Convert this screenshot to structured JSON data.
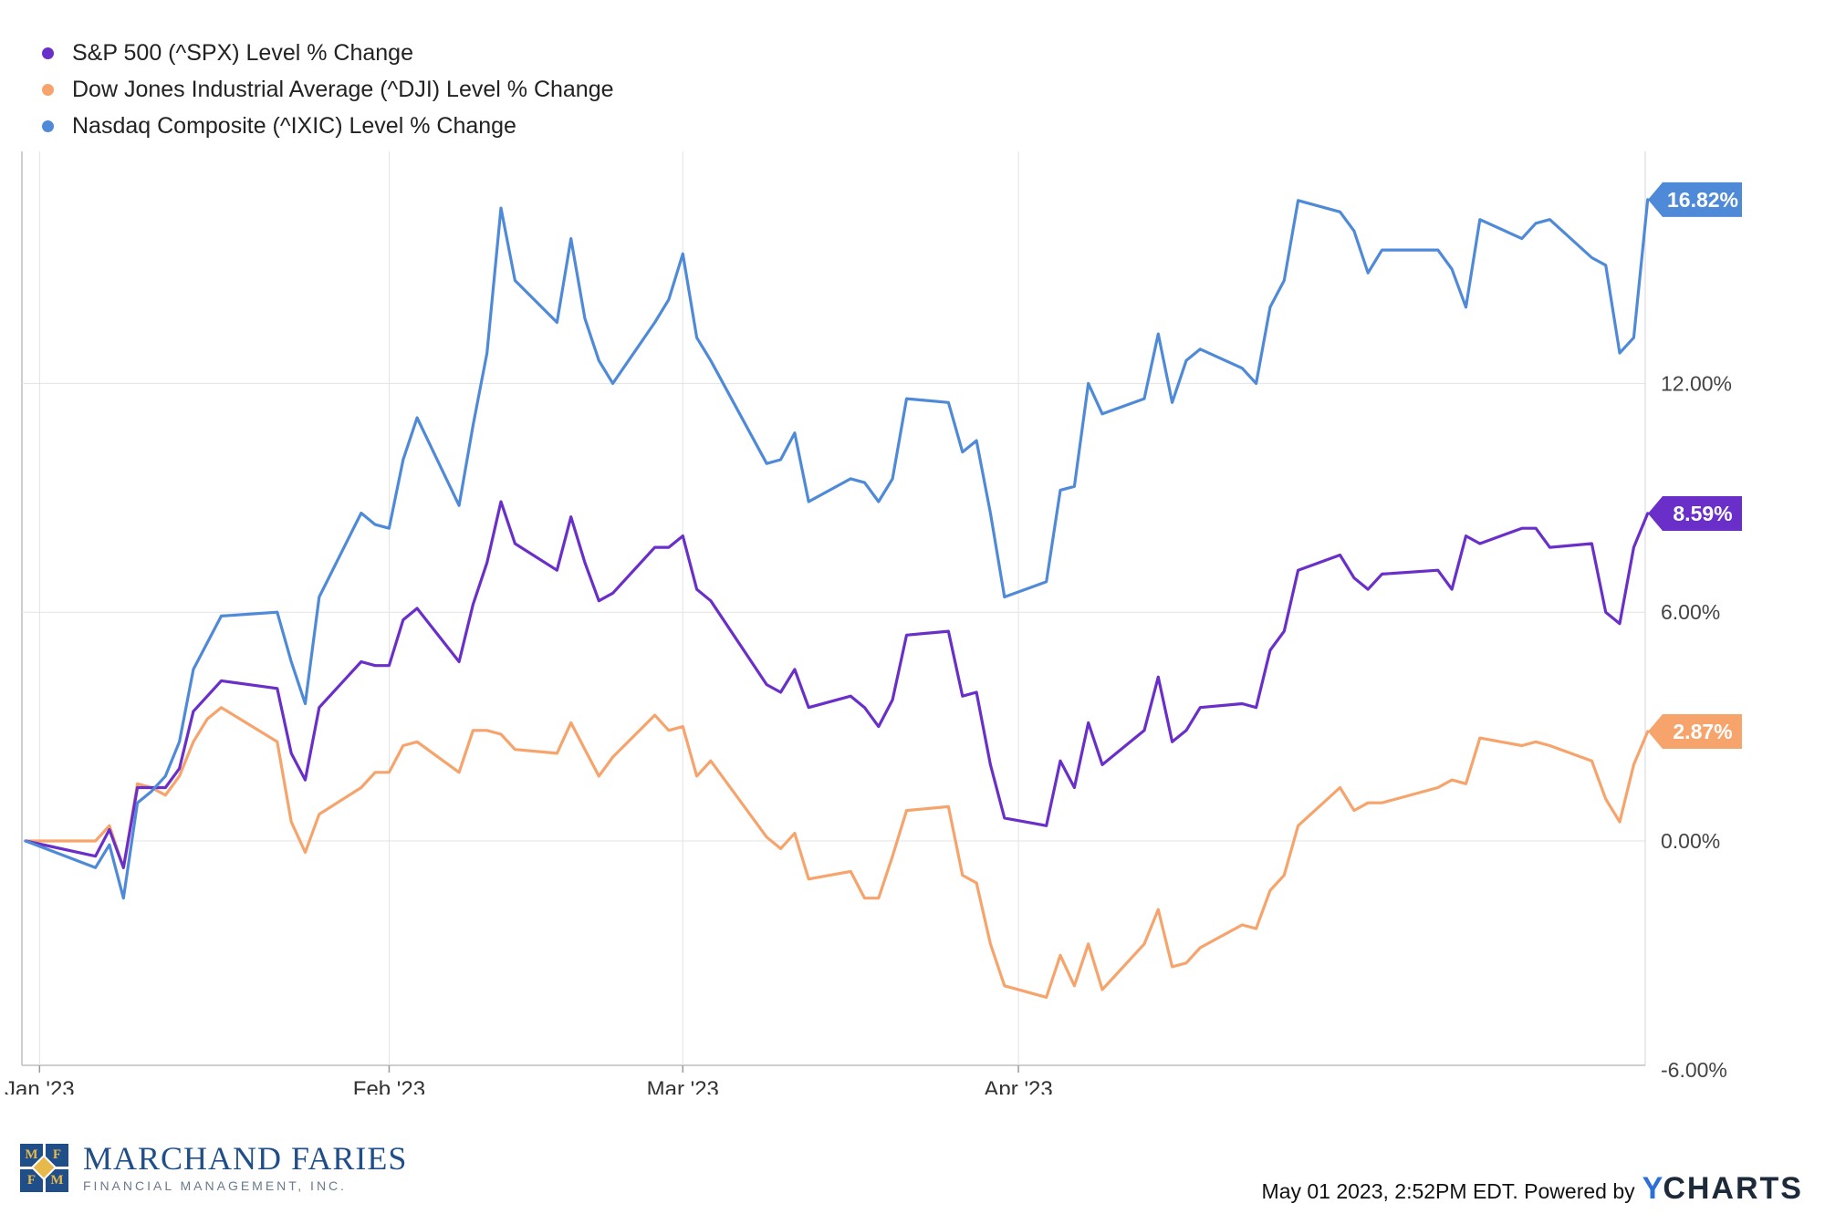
{
  "chart_data": {
    "type": "line",
    "x_label_ticks": [
      "Jan '23",
      "Feb '23",
      "Mar '23",
      "Apr '23"
    ],
    "y_ticks": [
      "12.00%",
      "6.00%",
      "0.00%",
      "-6.00%"
    ],
    "ylim": [
      -6,
      18
    ],
    "grid": true,
    "legend_placement": "top-left",
    "series": [
      {
        "name": "S&P 500 (^SPX) Level % Change",
        "color": "#6a2fc9",
        "end_label": "8.59%",
        "values": [
          [
            0,
            0
          ],
          [
            5,
            -0.4
          ],
          [
            6,
            0.3
          ],
          [
            7,
            -0.7
          ],
          [
            8,
            1.4
          ],
          [
            9,
            1.4
          ],
          [
            10,
            1.4
          ],
          [
            11,
            1.9
          ],
          [
            12,
            3.4
          ],
          [
            13,
            3.8
          ],
          [
            14,
            4.2
          ],
          [
            18,
            4.0
          ],
          [
            19,
            2.3
          ],
          [
            20,
            1.6
          ],
          [
            21,
            3.5
          ],
          [
            24,
            4.7
          ],
          [
            25,
            4.6
          ],
          [
            26,
            4.6
          ],
          [
            27,
            5.8
          ],
          [
            28,
            6.1
          ],
          [
            31,
            4.7
          ],
          [
            32,
            6.2
          ],
          [
            33,
            7.3
          ],
          [
            34,
            8.9
          ],
          [
            35,
            7.8
          ],
          [
            38,
            7.1
          ],
          [
            39,
            8.5
          ],
          [
            40,
            7.3
          ],
          [
            41,
            6.3
          ],
          [
            42,
            6.5
          ],
          [
            45,
            7.7
          ],
          [
            46,
            7.7
          ],
          [
            47,
            8.0
          ],
          [
            48,
            6.6
          ],
          [
            49,
            6.3
          ],
          [
            53,
            4.1
          ],
          [
            54,
            3.9
          ],
          [
            55,
            4.5
          ],
          [
            56,
            3.5
          ],
          [
            59,
            3.8
          ],
          [
            60,
            3.5
          ],
          [
            61,
            3.0
          ],
          [
            62,
            3.7
          ],
          [
            63,
            5.4
          ],
          [
            66,
            5.5
          ],
          [
            67,
            3.8
          ],
          [
            68,
            3.9
          ],
          [
            69,
            2.0
          ],
          [
            70,
            0.6
          ],
          [
            73,
            0.4
          ],
          [
            74,
            2.1
          ],
          [
            75,
            1.4
          ],
          [
            76,
            3.1
          ],
          [
            77,
            2.0
          ],
          [
            80,
            2.9
          ],
          [
            81,
            4.3
          ],
          [
            82,
            2.6
          ],
          [
            83,
            2.9
          ],
          [
            84,
            3.5
          ],
          [
            87,
            3.6
          ],
          [
            88,
            3.5
          ],
          [
            89,
            5.0
          ],
          [
            90,
            5.5
          ],
          [
            91,
            7.1
          ],
          [
            94,
            7.5
          ],
          [
            95,
            6.9
          ],
          [
            96,
            6.6
          ],
          [
            97,
            7.0
          ],
          [
            101,
            7.1
          ],
          [
            102,
            6.6
          ],
          [
            103,
            8.0
          ],
          [
            104,
            7.8
          ],
          [
            107,
            8.2
          ],
          [
            108,
            8.2
          ],
          [
            109,
            7.7
          ],
          [
            112,
            7.8
          ],
          [
            113,
            6.0
          ],
          [
            114,
            5.7
          ],
          [
            115,
            7.7
          ],
          [
            116,
            8.59
          ]
        ]
      },
      {
        "name": "Dow Jones Industrial Average (^DJI) Level % Change",
        "color": "#f6a46c",
        "end_label": "2.87%",
        "values": [
          [
            0,
            0
          ],
          [
            5,
            0
          ],
          [
            6,
            0.4
          ],
          [
            7,
            -0.7
          ],
          [
            8,
            1.5
          ],
          [
            9,
            1.4
          ],
          [
            10,
            1.2
          ],
          [
            11,
            1.7
          ],
          [
            12,
            2.6
          ],
          [
            13,
            3.2
          ],
          [
            14,
            3.5
          ],
          [
            18,
            2.6
          ],
          [
            19,
            0.5
          ],
          [
            20,
            -0.3
          ],
          [
            21,
            0.7
          ],
          [
            24,
            1.4
          ],
          [
            25,
            1.8
          ],
          [
            26,
            1.8
          ],
          [
            27,
            2.5
          ],
          [
            28,
            2.6
          ],
          [
            31,
            1.8
          ],
          [
            32,
            2.9
          ],
          [
            33,
            2.9
          ],
          [
            34,
            2.8
          ],
          [
            35,
            2.4
          ],
          [
            38,
            2.3
          ],
          [
            39,
            3.1
          ],
          [
            40,
            2.4
          ],
          [
            41,
            1.7
          ],
          [
            42,
            2.2
          ],
          [
            45,
            3.3
          ],
          [
            46,
            2.9
          ],
          [
            47,
            3.0
          ],
          [
            48,
            1.7
          ],
          [
            49,
            2.1
          ],
          [
            53,
            0.1
          ],
          [
            54,
            -0.2
          ],
          [
            55,
            0.2
          ],
          [
            56,
            -1.0
          ],
          [
            59,
            -0.8
          ],
          [
            60,
            -1.5
          ],
          [
            61,
            -1.5
          ],
          [
            62,
            -0.4
          ],
          [
            63,
            0.8
          ],
          [
            66,
            0.9
          ],
          [
            67,
            -0.9
          ],
          [
            68,
            -1.1
          ],
          [
            69,
            -2.7
          ],
          [
            70,
            -3.8
          ],
          [
            73,
            -4.1
          ],
          [
            74,
            -3.0
          ],
          [
            75,
            -3.8
          ],
          [
            76,
            -2.7
          ],
          [
            77,
            -3.9
          ],
          [
            80,
            -2.7
          ],
          [
            81,
            -1.8
          ],
          [
            82,
            -3.3
          ],
          [
            83,
            -3.2
          ],
          [
            84,
            -2.8
          ],
          [
            87,
            -2.2
          ],
          [
            88,
            -2.3
          ],
          [
            89,
            -1.3
          ],
          [
            90,
            -0.9
          ],
          [
            91,
            0.4
          ],
          [
            94,
            1.4
          ],
          [
            95,
            0.8
          ],
          [
            96,
            1.0
          ],
          [
            97,
            1.0
          ],
          [
            101,
            1.4
          ],
          [
            102,
            1.6
          ],
          [
            103,
            1.5
          ],
          [
            104,
            2.7
          ],
          [
            107,
            2.5
          ],
          [
            108,
            2.6
          ],
          [
            109,
            2.5
          ],
          [
            112,
            2.1
          ],
          [
            113,
            1.1
          ],
          [
            114,
            0.5
          ],
          [
            115,
            2.0
          ],
          [
            116,
            2.87
          ]
        ]
      },
      {
        "name": "Nasdaq Composite (^IXIC) Level % Change",
        "color": "#4f8ad8",
        "end_label": "16.82%",
        "values": [
          [
            0,
            0
          ],
          [
            5,
            -0.7
          ],
          [
            6,
            -0.1
          ],
          [
            7,
            -1.5
          ],
          [
            8,
            1.0
          ],
          [
            9,
            1.3
          ],
          [
            10,
            1.7
          ],
          [
            11,
            2.6
          ],
          [
            12,
            4.5
          ],
          [
            13,
            5.2
          ],
          [
            14,
            5.9
          ],
          [
            18,
            6.0
          ],
          [
            19,
            4.7
          ],
          [
            20,
            3.6
          ],
          [
            21,
            6.4
          ],
          [
            24,
            8.6
          ],
          [
            25,
            8.3
          ],
          [
            26,
            8.2
          ],
          [
            27,
            10.0
          ],
          [
            28,
            11.1
          ],
          [
            31,
            8.8
          ],
          [
            32,
            10.9
          ],
          [
            33,
            12.8
          ],
          [
            34,
            16.6
          ],
          [
            35,
            14.7
          ],
          [
            38,
            13.6
          ],
          [
            39,
            15.8
          ],
          [
            40,
            13.7
          ],
          [
            41,
            12.6
          ],
          [
            42,
            12.0
          ],
          [
            45,
            13.6
          ],
          [
            46,
            14.2
          ],
          [
            47,
            15.4
          ],
          [
            48,
            13.2
          ],
          [
            49,
            12.6
          ],
          [
            53,
            9.9
          ],
          [
            54,
            10.0
          ],
          [
            55,
            10.7
          ],
          [
            56,
            8.9
          ],
          [
            59,
            9.5
          ],
          [
            60,
            9.4
          ],
          [
            61,
            8.9
          ],
          [
            62,
            9.5
          ],
          [
            63,
            11.6
          ],
          [
            66,
            11.5
          ],
          [
            67,
            10.2
          ],
          [
            68,
            10.5
          ],
          [
            69,
            8.6
          ],
          [
            70,
            6.4
          ],
          [
            73,
            6.8
          ],
          [
            74,
            9.2
          ],
          [
            75,
            9.3
          ],
          [
            76,
            12.0
          ],
          [
            77,
            11.2
          ],
          [
            80,
            11.6
          ],
          [
            81,
            13.3
          ],
          [
            82,
            11.5
          ],
          [
            83,
            12.6
          ],
          [
            84,
            12.9
          ],
          [
            87,
            12.4
          ],
          [
            88,
            12.0
          ],
          [
            89,
            14.0
          ],
          [
            90,
            14.7
          ],
          [
            91,
            16.8
          ],
          [
            94,
            16.5
          ],
          [
            95,
            16.0
          ],
          [
            96,
            14.9
          ],
          [
            97,
            15.5
          ],
          [
            101,
            15.5
          ],
          [
            102,
            15.0
          ],
          [
            103,
            14.0
          ],
          [
            104,
            16.3
          ],
          [
            107,
            15.8
          ],
          [
            108,
            16.2
          ],
          [
            109,
            16.3
          ],
          [
            112,
            15.3
          ],
          [
            113,
            15.1
          ],
          [
            114,
            12.8
          ],
          [
            115,
            13.2
          ],
          [
            116,
            16.82
          ]
        ]
      }
    ]
  },
  "logo": {
    "letters": [
      "M",
      "F",
      "F",
      "M"
    ],
    "name": "MARCHAND FARIES",
    "subtitle": "FINANCIAL MANAGEMENT, INC."
  },
  "footer": {
    "timestamp_text": "May 01 2023, 2:52PM EDT. Powered by",
    "brand_y": "Y",
    "brand_rest": "CHARTS"
  }
}
